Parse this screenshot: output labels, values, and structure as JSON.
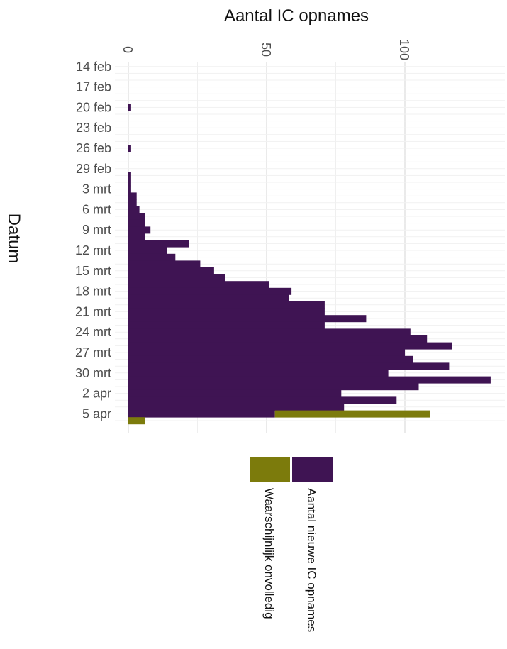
{
  "chart_data": {
    "type": "bar",
    "orientation": "horizontal",
    "stacked": true,
    "title": "",
    "xlabel": "Aantal IC opnames",
    "ylabel": "Datum",
    "xlim": [
      0,
      130
    ],
    "x_ticks": [
      0,
      50,
      100
    ],
    "x_tick_labels": [
      "0",
      "50",
      "100"
    ],
    "categories": [
      "14 feb",
      "15 feb",
      "16 feb",
      "17 feb",
      "18 feb",
      "19 feb",
      "20 feb",
      "21 feb",
      "22 feb",
      "23 feb",
      "24 feb",
      "25 feb",
      "26 feb",
      "27 feb",
      "28 feb",
      "29 feb",
      "1 mrt",
      "2 mrt",
      "3 mrt",
      "4 mrt",
      "5 mrt",
      "6 mrt",
      "7 mrt",
      "8 mrt",
      "9 mrt",
      "10 mrt",
      "11 mrt",
      "12 mrt",
      "13 mrt",
      "14 mrt",
      "15 mrt",
      "16 mrt",
      "17 mrt",
      "18 mrt",
      "19 mrt",
      "20 mrt",
      "21 mrt",
      "22 mrt",
      "23 mrt",
      "24 mrt",
      "25 mrt",
      "26 mrt",
      "27 mrt",
      "28 mrt",
      "29 mrt",
      "30 mrt",
      "31 mrt",
      "1 apr",
      "2 apr",
      "3 apr",
      "4 apr",
      "5 apr",
      "6 apr"
    ],
    "tick_labels": [
      "14 feb",
      "17 feb",
      "20 feb",
      "23 feb",
      "26 feb",
      "29 feb",
      "3 mrt",
      "6 mrt",
      "9 mrt",
      "12 mrt",
      "15 mrt",
      "18 mrt",
      "21 mrt",
      "24 mrt",
      "27 mrt",
      "30 mrt",
      "2 apr",
      "5 apr"
    ],
    "series": [
      {
        "name": "Aantal nieuwe IC opnames",
        "color": "#3f1453",
        "values": [
          0,
          0,
          0,
          0,
          0,
          0,
          1,
          0,
          0,
          0,
          0,
          0,
          1,
          0,
          0,
          0,
          1,
          1,
          1,
          3,
          3,
          4,
          6,
          6,
          8,
          6,
          22,
          14,
          17,
          26,
          31,
          35,
          51,
          59,
          58,
          71,
          71,
          86,
          71,
          102,
          108,
          117,
          100,
          103,
          116,
          94,
          131,
          105,
          77,
          97,
          78,
          53,
          0
        ]
      },
      {
        "name": "Waarschijnlijk onvolledig",
        "color": "#7c7b0c",
        "values": [
          0,
          0,
          0,
          0,
          0,
          0,
          0,
          0,
          0,
          0,
          0,
          0,
          0,
          0,
          0,
          0,
          0,
          0,
          0,
          0,
          0,
          0,
          0,
          0,
          0,
          0,
          0,
          0,
          0,
          0,
          0,
          0,
          0,
          0,
          0,
          0,
          0,
          0,
          0,
          0,
          0,
          0,
          0,
          0,
          0,
          0,
          0,
          0,
          0,
          0,
          0,
          56,
          6
        ]
      }
    ],
    "grid": true,
    "legend_placement": "bottom"
  }
}
